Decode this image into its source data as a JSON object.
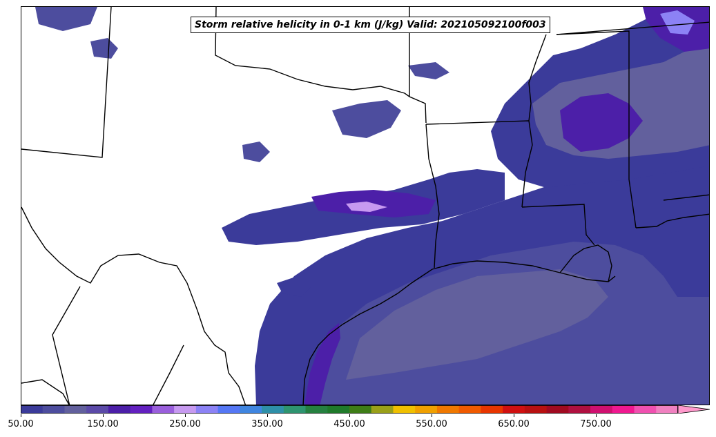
{
  "title": "Storm relative helicity in 0-1 km (J/kg) Valid: 202105092100f003",
  "colorbar": {
    "min": 50,
    "max": 850,
    "extend": "max",
    "tick_labels": [
      "50.00",
      "150.00",
      "250.00",
      "350.00",
      "450.00",
      "550.00",
      "650.00",
      "750.00"
    ],
    "tick_values": [
      50,
      150,
      250,
      350,
      450,
      550,
      650,
      750
    ],
    "colors": [
      "#3b3b9a",
      "#4d4d9e",
      "#62609d",
      "#5b4aa8",
      "#4c1fa8",
      "#6320c0",
      "#9a5fdc",
      "#c79af0",
      "#8c82f5",
      "#5577f5",
      "#3f85e0",
      "#2e8fa8",
      "#2e9470",
      "#258040",
      "#1f7a2a",
      "#3e7d17",
      "#9aa018",
      "#f0c000",
      "#f0a000",
      "#f07800",
      "#f05a00",
      "#e83500",
      "#d01010",
      "#b81010",
      "#a00a20",
      "#b01040",
      "#d01070",
      "#f01890",
      "#f050b0",
      "#f080c0"
    ]
  },
  "map": {
    "background": "#ffffff",
    "boundary_color": "#000000",
    "colors": {
      "level1": "#3b3b9a",
      "level2": "#4d4d9e",
      "level3": "#62609d",
      "level4": "#4c1fa8",
      "level5": "#8c82f5",
      "level6": "#c79af0"
    }
  }
}
